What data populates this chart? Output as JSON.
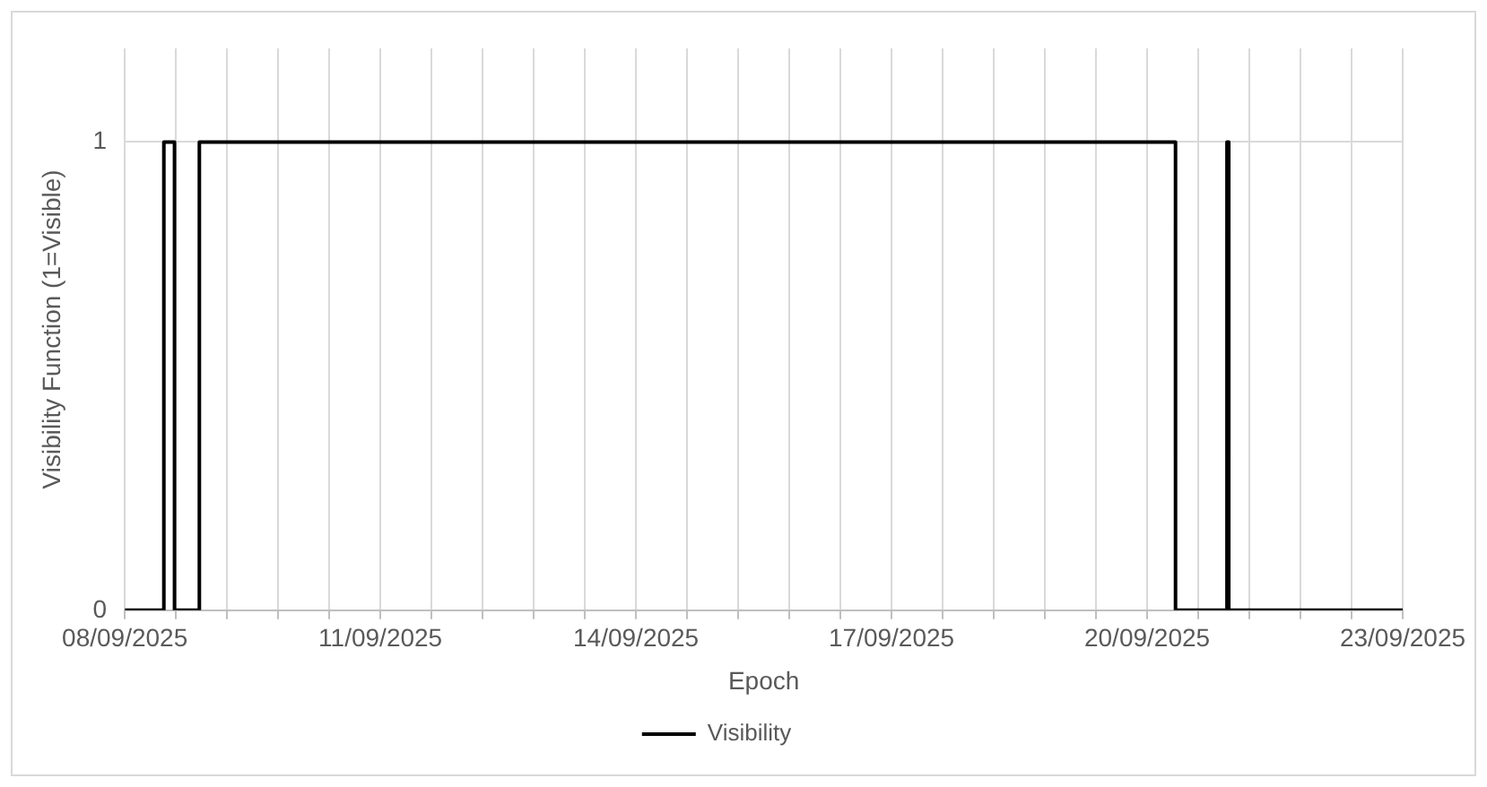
{
  "chart_data": {
    "type": "step",
    "xlabel": "Epoch",
    "ylabel": "Visibility Function (1=Visible)",
    "x": [
      "2025-09-08",
      "2025-09-08T11:00",
      "2025-09-08T14:00",
      "2025-09-08T21:00",
      "2025-09-20T08:00",
      "2025-09-20T22:30",
      "2025-09-20T23:00",
      "2025-09-23"
    ],
    "series": [
      {
        "name": "Visibility",
        "color": "#000000",
        "values": [
          0,
          1,
          0,
          1,
          0,
          1,
          0,
          0
        ]
      }
    ],
    "xlim": [
      "2025-09-08",
      "2025-09-23"
    ],
    "xticks": [
      {
        "value": "2025-09-08",
        "label": "08/09/2025"
      },
      {
        "value": "2025-09-08T14:24",
        "label": null
      },
      {
        "value": "2025-09-09T04:48",
        "label": null
      },
      {
        "value": "2025-09-09T19:12",
        "label": null
      },
      {
        "value": "2025-09-10T09:36",
        "label": null
      },
      {
        "value": "2025-09-11",
        "label": "11/09/2025"
      },
      {
        "value": "2025-09-11T14:24",
        "label": null
      },
      {
        "value": "2025-09-12T04:48",
        "label": null
      },
      {
        "value": "2025-09-12T19:12",
        "label": null
      },
      {
        "value": "2025-09-13T09:36",
        "label": null
      },
      {
        "value": "2025-09-14",
        "label": "14/09/2025"
      },
      {
        "value": "2025-09-14T14:24",
        "label": null
      },
      {
        "value": "2025-09-15T04:48",
        "label": null
      },
      {
        "value": "2025-09-15T19:12",
        "label": null
      },
      {
        "value": "2025-09-16T09:36",
        "label": null
      },
      {
        "value": "2025-09-17",
        "label": "17/09/2025"
      },
      {
        "value": "2025-09-17T14:24",
        "label": null
      },
      {
        "value": "2025-09-18T04:48",
        "label": null
      },
      {
        "value": "2025-09-18T19:12",
        "label": null
      },
      {
        "value": "2025-09-19T09:36",
        "label": null
      },
      {
        "value": "2025-09-20",
        "label": "20/09/2025"
      },
      {
        "value": "2025-09-20T14:24",
        "label": null
      },
      {
        "value": "2025-09-21T04:48",
        "label": null
      },
      {
        "value": "2025-09-21T19:12",
        "label": null
      },
      {
        "value": "2025-09-22T09:36",
        "label": null
      },
      {
        "value": "2025-09-23",
        "label": "23/09/2025"
      }
    ],
    "ylim": [
      0,
      1.2
    ],
    "yticks": [
      0,
      1
    ],
    "grid": true,
    "legend": "bottom",
    "marker": "none",
    "line_style": "solid"
  }
}
